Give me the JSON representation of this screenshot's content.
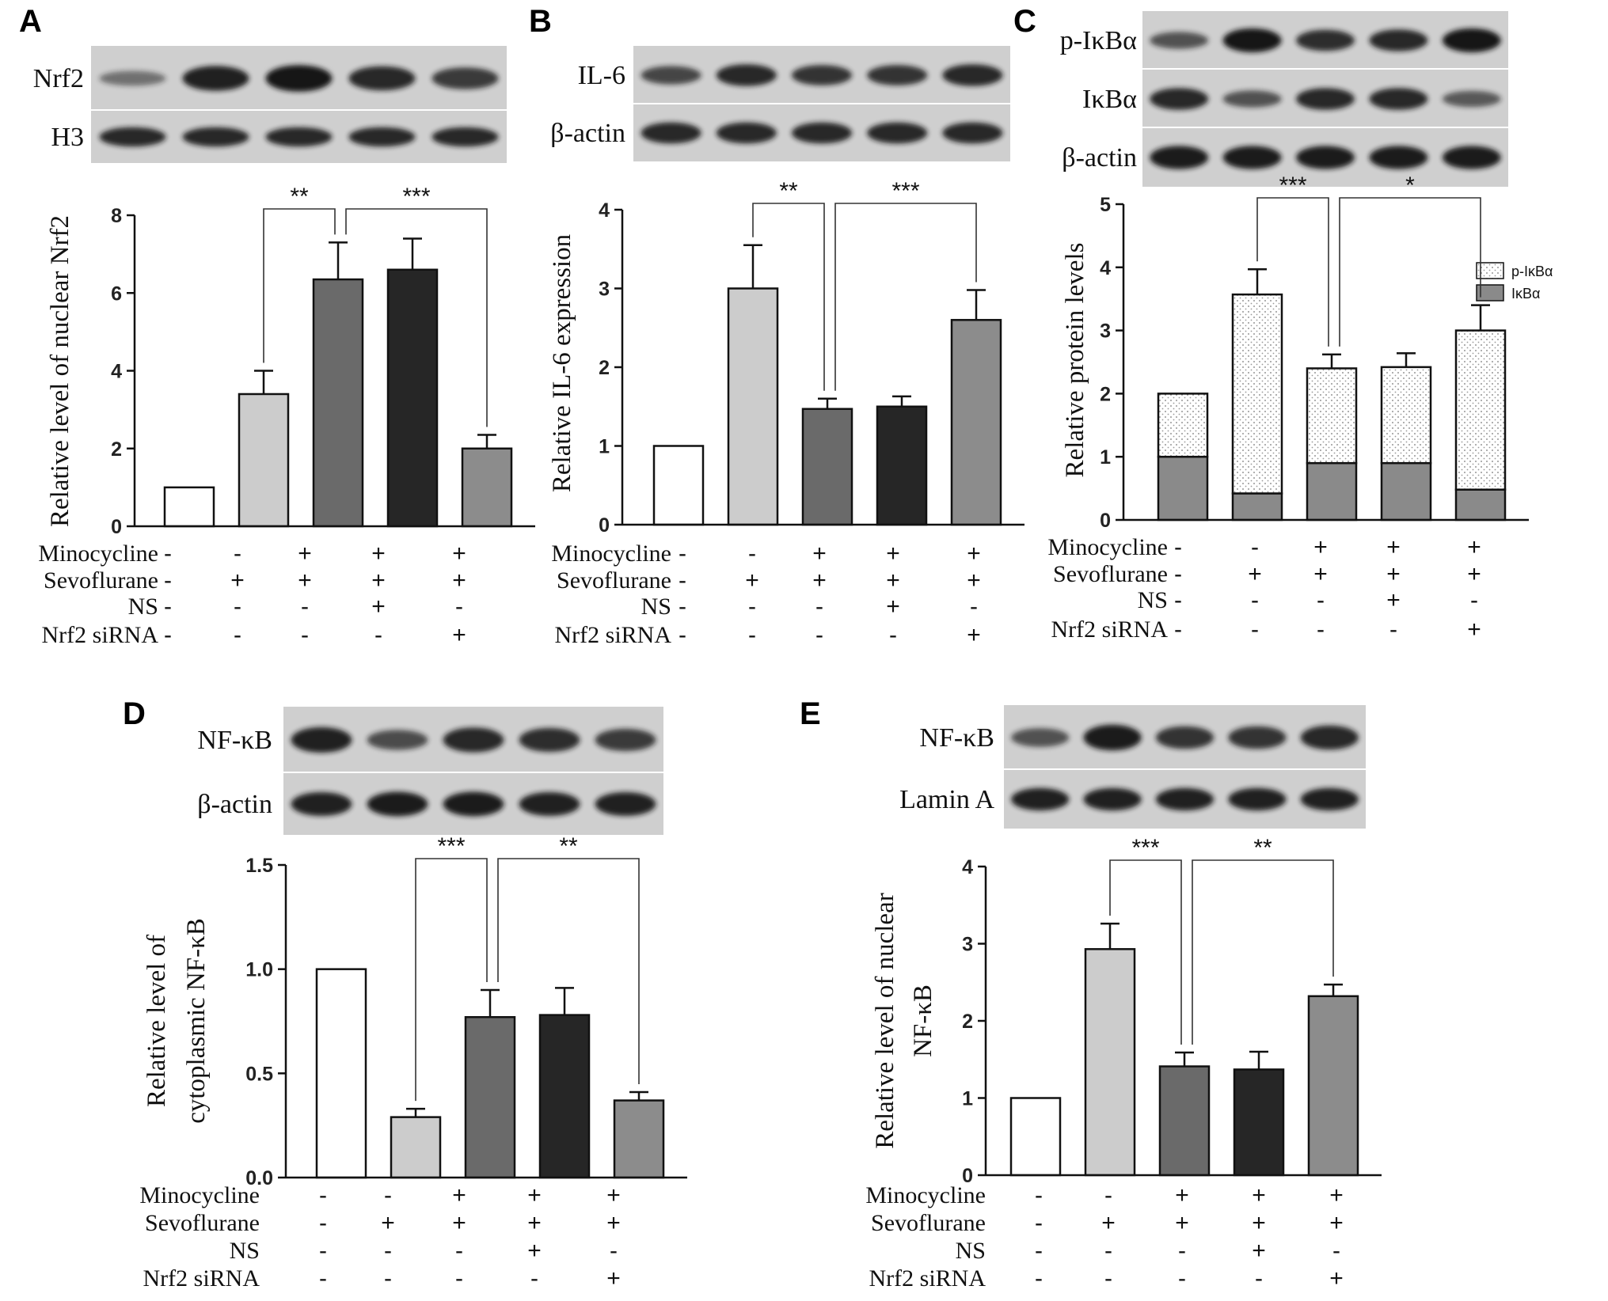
{
  "colors": {
    "g1": "#ffffff",
    "g2": "#cccccc",
    "g3": "#6a6a6a",
    "g4": "#262626",
    "g5": "#8c8c8c",
    "axis": "#111111",
    "blot_bg": "#cfcfcf",
    "band": "#181818"
  },
  "condition_labels": [
    "Minocycline",
    "Sevoflurane",
    "NS",
    "Nrf2 siRNA"
  ],
  "conditions": [
    [
      "-",
      "-",
      "+",
      "+",
      "+"
    ],
    [
      "-",
      "+",
      "+",
      "+",
      "+"
    ],
    [
      "-",
      "-",
      "-",
      "+",
      "-"
    ],
    [
      "-",
      "-",
      "-",
      "-",
      "+"
    ]
  ],
  "chart_data": [
    {
      "panel": "A",
      "type": "bar",
      "blots": [
        "Nrf2",
        "H3"
      ],
      "band_intensity": [
        [
          0.25,
          0.9,
          1.0,
          0.85,
          0.7
        ],
        [
          0.85,
          0.85,
          0.85,
          0.85,
          0.85
        ]
      ],
      "ylabel": "Relative level of nuclear Nrf2",
      "ylim": [
        0,
        8
      ],
      "yticks": [
        0,
        2,
        4,
        6,
        8
      ],
      "ytick_labels": [
        "0",
        "2",
        "4",
        "6",
        "8"
      ],
      "values": [
        1.0,
        3.4,
        6.35,
        6.6,
        2.0
      ],
      "errors": [
        0,
        0.6,
        0.95,
        0.8,
        0.35
      ],
      "brackets": [
        {
          "from": 1,
          "to": 2,
          "label": "**"
        },
        {
          "from": 2,
          "to": 4,
          "label": "***"
        }
      ]
    },
    {
      "panel": "B",
      "type": "bar",
      "blots": [
        "IL-6",
        "β-actin"
      ],
      "band_intensity": [
        [
          0.6,
          0.85,
          0.75,
          0.75,
          0.85
        ],
        [
          0.85,
          0.85,
          0.85,
          0.85,
          0.85
        ]
      ],
      "ylabel": "Relative IL-6 expression",
      "ylim": [
        0,
        4
      ],
      "yticks": [
        0,
        1,
        2,
        3,
        4
      ],
      "ytick_labels": [
        "0",
        "1",
        "2",
        "3",
        "4"
      ],
      "values": [
        1.0,
        3.0,
        1.47,
        1.5,
        2.6
      ],
      "errors": [
        0,
        0.55,
        0.13,
        0.13,
        0.38
      ],
      "brackets": [
        {
          "from": 1,
          "to": 2,
          "label": "**"
        },
        {
          "from": 2,
          "to": 4,
          "label": "***"
        }
      ]
    },
    {
      "panel": "C",
      "type": "bar",
      "stacked": true,
      "blots": [
        "p-IκBα",
        "IκBα",
        "β-actin"
      ],
      "band_intensity": [
        [
          0.5,
          1.0,
          0.8,
          0.85,
          1.0
        ],
        [
          0.85,
          0.5,
          0.85,
          0.85,
          0.45
        ],
        [
          0.95,
          0.95,
          0.95,
          0.95,
          0.95
        ]
      ],
      "ylabel": "Relative protein levels",
      "ylim": [
        0,
        5
      ],
      "yticks": [
        0,
        1,
        2,
        3,
        4,
        5
      ],
      "ytick_labels": [
        "0",
        "1",
        "2",
        "3",
        "4",
        "5"
      ],
      "legend": [
        "p-IκBα",
        "IκBα"
      ],
      "series": [
        {
          "name": "IκBα",
          "values": [
            1.0,
            0.42,
            0.9,
            0.9,
            0.48
          ],
          "errors": [
            0,
            0.03,
            0.1,
            0.1,
            0.05
          ]
        },
        {
          "name": "p-IκBα",
          "values": [
            1.0,
            3.15,
            1.5,
            1.52,
            2.52
          ],
          "errors": [
            0,
            0.4,
            0.22,
            0.22,
            0.4
          ]
        }
      ],
      "brackets": [
        {
          "from": 1,
          "to": 2,
          "label": "***"
        },
        {
          "from": 2,
          "to": 4,
          "label": "*"
        }
      ]
    },
    {
      "panel": "D",
      "type": "bar",
      "blots": [
        "NF-κB",
        "β-actin"
      ],
      "band_intensity": [
        [
          0.9,
          0.55,
          0.85,
          0.8,
          0.7
        ],
        [
          0.9,
          0.95,
          0.95,
          0.9,
          0.9
        ]
      ],
      "ylabel": [
        "Relative level of",
        "cytoplasmic NF-κB"
      ],
      "ylim": [
        0,
        1.5
      ],
      "yticks": [
        0,
        0.5,
        1.0,
        1.5
      ],
      "ytick_labels": [
        "0.0",
        "0.5",
        "1.0",
        "1.5"
      ],
      "values": [
        1.0,
        0.29,
        0.77,
        0.78,
        0.37
      ],
      "errors": [
        0,
        0.04,
        0.13,
        0.13,
        0.04
      ],
      "brackets": [
        {
          "from": 1,
          "to": 2,
          "label": "***"
        },
        {
          "from": 2,
          "to": 4,
          "label": "**"
        }
      ]
    },
    {
      "panel": "E",
      "type": "bar",
      "blots": [
        "NF-κB",
        "Lamin A"
      ],
      "band_intensity": [
        [
          0.5,
          0.95,
          0.75,
          0.75,
          0.85
        ],
        [
          0.9,
          0.9,
          0.9,
          0.9,
          0.9
        ]
      ],
      "ylabel": [
        "Relative level of nuclear",
        "NF-κB"
      ],
      "ylim": [
        0,
        4
      ],
      "yticks": [
        0,
        1,
        2,
        3,
        4
      ],
      "ytick_labels": [
        "0",
        "1",
        "2",
        "3",
        "4"
      ],
      "values": [
        1.0,
        2.93,
        1.41,
        1.37,
        2.32
      ],
      "errors": [
        0,
        0.33,
        0.18,
        0.23,
        0.15
      ],
      "brackets": [
        {
          "from": 1,
          "to": 2,
          "label": "***"
        },
        {
          "from": 2,
          "to": 4,
          "label": "**"
        }
      ]
    }
  ]
}
